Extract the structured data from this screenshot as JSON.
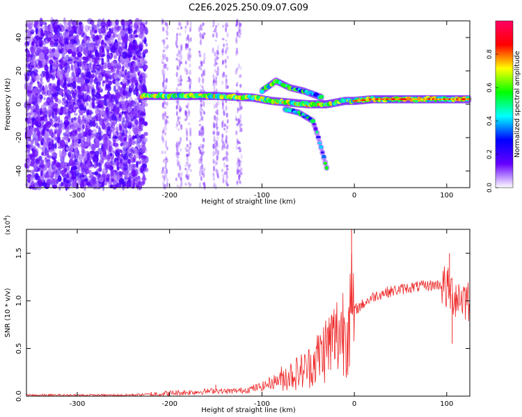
{
  "title": "C2E6.2025.250.09.07.G09",
  "chart_data": [
    {
      "type": "heatmap",
      "xlabel": "Height of straight line (km)",
      "ylabel": "Frequency (Hz)",
      "xlim": [
        -355,
        125
      ],
      "ylim": [
        -50,
        50
      ],
      "xticks": [
        -300,
        -200,
        -100,
        0,
        100
      ],
      "yticks": [
        -40,
        -20,
        0,
        20,
        40
      ],
      "colorbar": {
        "label": "Normalized spectral amplitude",
        "range": [
          0,
          1
        ],
        "ticks": [
          "0.0",
          "0.2",
          "0.4",
          "0.6",
          "0.8"
        ],
        "colors": [
          "#ffffff",
          "#6600ff",
          "#0000ff",
          "#00ffff",
          "#00ff00",
          "#ffff00",
          "#ff0000",
          "#ff0066"
        ]
      },
      "ridge": {
        "description": "main signal ridge (frequency vs height)",
        "x": [
          -230,
          -200,
          -150,
          -110,
          -90,
          -70,
          -50,
          -40,
          -30,
          -20,
          -10,
          0,
          20,
          50,
          80,
          100,
          125
        ],
        "y": [
          5,
          5,
          5,
          4,
          2,
          1,
          0,
          0,
          0,
          1,
          2,
          2,
          3,
          3,
          3,
          3,
          3
        ]
      },
      "upper_branch": {
        "x": [
          -100,
          -85,
          -70,
          -55,
          -45,
          -35
        ],
        "y": [
          8,
          14,
          10,
          8,
          6,
          4
        ]
      },
      "lower_branch": {
        "x": [
          -75,
          -60,
          -45,
          -40,
          -35,
          -30
        ],
        "y": [
          -3,
          -5,
          -10,
          -18,
          -28,
          -38
        ]
      },
      "noise_region": {
        "x_from": -355,
        "x_to": -225,
        "y_from": -50,
        "y_to": 50
      }
    },
    {
      "type": "line",
      "xlabel": "Height of straight line (km)",
      "ylabel": "SNR (10 * v/v)",
      "yscale_label": "(x10",
      "yscale_exp": "4",
      "xlim": [
        -355,
        125
      ],
      "ylim": [
        0,
        1.75
      ],
      "xticks": [
        -300,
        -200,
        -100,
        0,
        100
      ],
      "yticks": [
        "0.0",
        "0.5",
        "1.0",
        "1.5"
      ],
      "color": "#ee2222",
      "series": [
        {
          "name": "SNR",
          "x": [
            -355,
            -300,
            -250,
            -220,
            -200,
            -180,
            -160,
            -150,
            -140,
            -120,
            -100,
            -90,
            -80,
            -70,
            -60,
            -50,
            -40,
            -30,
            -20,
            -10,
            -5,
            0,
            10,
            20,
            30,
            40,
            50,
            60,
            70,
            80,
            90,
            95,
            100,
            105,
            110,
            115,
            120,
            125
          ],
          "values": [
            0.01,
            0.01,
            0.01,
            0.02,
            0.03,
            0.04,
            0.05,
            0.06,
            0.05,
            0.06,
            0.1,
            0.14,
            0.18,
            0.22,
            0.25,
            0.3,
            0.4,
            0.52,
            0.62,
            0.75,
            0.85,
            0.9,
            0.97,
            1.04,
            1.08,
            1.1,
            1.12,
            1.14,
            1.15,
            1.16,
            1.17,
            1.17,
            1.12,
            1.08,
            1.06,
            1.04,
            1.03,
            1.02
          ]
        }
      ],
      "spikes": [
        {
          "x": -150,
          "value": 0.12
        },
        {
          "x": -3,
          "value": 1.75
        },
        {
          "x": 103,
          "value": 1.5
        },
        {
          "x": 106,
          "value": 0.55
        }
      ]
    }
  ]
}
